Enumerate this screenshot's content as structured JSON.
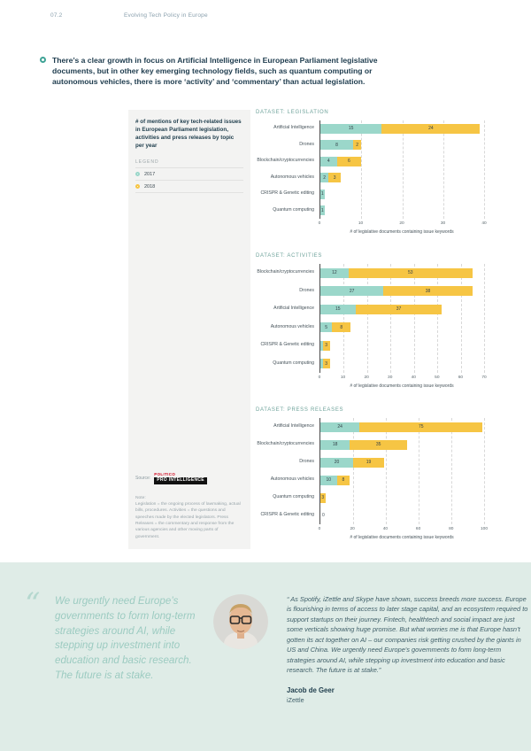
{
  "page": {
    "number": "07.2",
    "header_title": "Evolving Tech Policy in Europe"
  },
  "intro": {
    "text": "There’s a clear growth in focus on Artificial Intelligence in European Parliament legislative documents, but in other key emerging technology fields, such as quantum computing or autonomous vehicles, there is more ‘activity’ and ‘commentary’ than actual legislation."
  },
  "figure": {
    "description": "# of mentions of key tech-related issues in European Parliament legislation, activities and press releases by topic per year",
    "legend_title": "LEGEND",
    "legend": [
      {
        "label": "2017",
        "color": "#9bd7ca"
      },
      {
        "label": "2018",
        "color": "#f6c544"
      }
    ],
    "source_label": "Source:",
    "logo_top": "POLITICO",
    "logo_main": "PRO INTELLIGENCE",
    "note": "Note:\nLegislation = the ongoing process of lawmaking, actual bills, procedures. Activities = the questions and speeches made by the elected legislators. Press Releases = the commentary and response from the various agencies and other moving parts of government."
  },
  "chart_data": [
    {
      "type": "bar",
      "stacked": true,
      "title": "DATASET: LEGISLATION",
      "xlabel": "# of legislative documents containing issue keywords",
      "xmax": 40,
      "ticks": [
        0,
        10,
        20,
        30,
        40
      ],
      "series_names": [
        "2017",
        "2018"
      ],
      "rows": [
        {
          "category": "Artificial Intelligence",
          "values": [
            15,
            24
          ]
        },
        {
          "category": "Drones",
          "values": [
            8,
            2
          ]
        },
        {
          "category": "Blockchain/cryptocurrencies",
          "values": [
            4,
            6
          ]
        },
        {
          "category": "Autonomous vehicles",
          "values": [
            2,
            3
          ]
        },
        {
          "category": "CRISPR & Genetic editing",
          "values": [
            1,
            0
          ]
        },
        {
          "category": "Quantum computing",
          "values": [
            1,
            0
          ]
        }
      ]
    },
    {
      "type": "bar",
      "stacked": true,
      "title": "DATASET: ACTIVITIES",
      "xlabel": "# of legislative documents containing issue keywords",
      "xmax": 70,
      "ticks": [
        0,
        10,
        20,
        30,
        40,
        50,
        60,
        70
      ],
      "series_names": [
        "2017",
        "2018"
      ],
      "rows": [
        {
          "category": "Blockchain/cryptocurrencies",
          "values": [
            12,
            53
          ]
        },
        {
          "category": "Drones",
          "values": [
            27,
            38
          ]
        },
        {
          "category": "Artificial Intelligence",
          "values": [
            15,
            37
          ]
        },
        {
          "category": "Autonomous vehicles",
          "values": [
            5,
            8
          ]
        },
        {
          "category": "CRISPR & Genetic editing",
          "values": [
            1,
            3
          ]
        },
        {
          "category": "Quantum computing",
          "values": [
            1,
            3
          ]
        }
      ]
    },
    {
      "type": "bar",
      "stacked": true,
      "title": "DATASET: PRESS RELEASES",
      "xlabel": "# of legislative documents containing issue keywords",
      "xmax": 100,
      "ticks": [
        0,
        20,
        40,
        60,
        80,
        100
      ],
      "series_names": [
        "2017",
        "2018"
      ],
      "rows": [
        {
          "category": "Artificial Intelligence",
          "values": [
            24,
            75
          ]
        },
        {
          "category": "Blockchain/cryptocurrencies",
          "values": [
            18,
            35
          ]
        },
        {
          "category": "Drones",
          "values": [
            20,
            19
          ]
        },
        {
          "category": "Autonomous vehicles",
          "values": [
            10,
            8
          ]
        },
        {
          "category": "Quantum computing",
          "values": [
            0,
            3
          ]
        },
        {
          "category": "CRISPR & Genetic editing",
          "values": [
            0,
            0
          ]
        }
      ]
    }
  ],
  "quote": {
    "mark": "“",
    "left_text": "We urgently need Europe’s governments to form long-term strategies around AI, while stepping up investment into education and basic research. The future is at stake.",
    "right_text": "“ As Spotify, iZettle and Skype have shown, success breeds more success. Europe is flourishing in terms of access to later stage capital, and an ecosystem required to support startups on their journey. Fintech, healthtech and social impact are just some verticals showing huge promise. But what worries me is that Europe hasn’t gotten its act together on AI – our companies risk getting crushed by the giants in US and China. We urgently need Europe’s governments to form long-term strategies around AI, while stepping up investment into education and basic research. The future is at stake.”",
    "author": "Jacob de Geer",
    "company": "iZettle"
  }
}
